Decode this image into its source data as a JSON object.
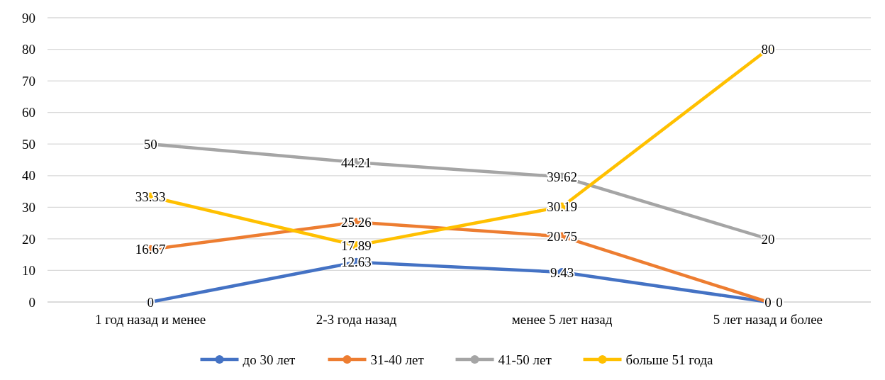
{
  "chart_data": {
    "type": "line",
    "categories": [
      "1 год назад и менее",
      "2-3 года назад",
      "менее 5 лет назад",
      "5 лет назад и более"
    ],
    "series": [
      {
        "name": "до 30 лет",
        "color": "#4472c4",
        "values": [
          0,
          12.63,
          9.43,
          0
        ]
      },
      {
        "name": "31-40 лет",
        "color": "#ed7d31",
        "values": [
          16.67,
          25.26,
          20.75,
          0
        ]
      },
      {
        "name": "41-50 лет",
        "color": "#a5a5a5",
        "values": [
          50,
          44.21,
          39.62,
          20
        ]
      },
      {
        "name": "больше 51 года",
        "color": "#ffc000",
        "values": [
          33.33,
          17.89,
          30.19,
          80
        ]
      }
    ],
    "ylim": [
      0,
      90
    ],
    "yticks": [
      0,
      10,
      20,
      30,
      40,
      50,
      60,
      70,
      80,
      90
    ],
    "grid": "y",
    "legend": "bottom",
    "marker": "circle",
    "line_style": "solid",
    "data_labels": true
  }
}
